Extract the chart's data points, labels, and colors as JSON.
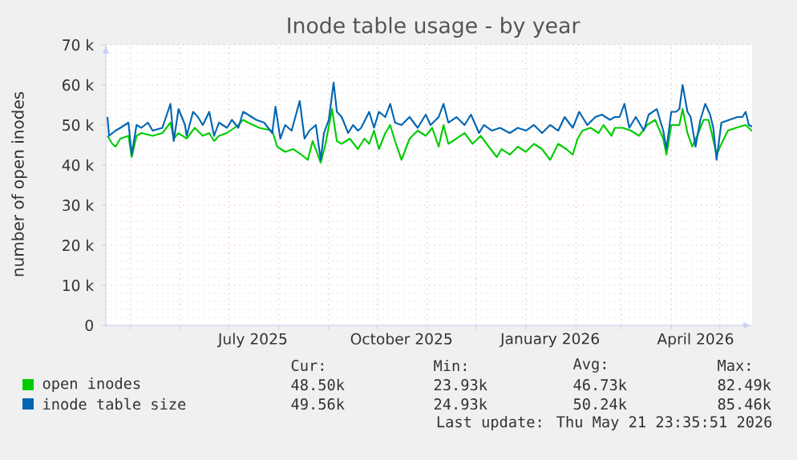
{
  "chart_data": {
    "type": "line",
    "title": "Inode table usage - by year",
    "ylabel": "number of open inodes",
    "xlim": [
      "2025-04-16",
      "2026-05-21"
    ],
    "ylim": [
      0,
      70000
    ],
    "yticks": [
      0,
      {
        "value": 10000,
        "label": "10 k"
      },
      {
        "value": 20000,
        "label": "20 k"
      },
      {
        "value": 30000,
        "label": "30 k"
      },
      {
        "value": 40000,
        "label": "40 k"
      },
      {
        "value": 50000,
        "label": "50 k"
      },
      {
        "value": 60000,
        "label": "60 k"
      },
      {
        "value": 70000,
        "label": "70 k"
      }
    ],
    "xticks": [
      {
        "value": "2025-05-01",
        "label": null
      },
      {
        "value": "2025-06-01",
        "label": null
      },
      {
        "value": "2025-07-01",
        "label": null
      },
      {
        "value": "2025-07-16",
        "label": "July 2025"
      },
      {
        "value": "2025-08-01",
        "label": null
      },
      {
        "value": "2025-09-01",
        "label": null
      },
      {
        "value": "2025-10-01",
        "label": null
      },
      {
        "value": "2025-10-16",
        "label": "October 2025"
      },
      {
        "value": "2025-11-01",
        "label": null
      },
      {
        "value": "2025-12-01",
        "label": null
      },
      {
        "value": "2026-01-01",
        "label": null
      },
      {
        "value": "2026-01-16",
        "label": "January 2026"
      },
      {
        "value": "2026-02-01",
        "label": null
      },
      {
        "value": "2026-03-01",
        "label": null
      },
      {
        "value": "2026-04-01",
        "label": null
      },
      {
        "value": "2026-04-16",
        "label": "April 2026"
      },
      {
        "value": "2026-05-01",
        "label": null
      }
    ],
    "grid": true,
    "legend": "bottom",
    "marker": "none",
    "line_style": "solid",
    "annotations": [
      "Cur:",
      "Min:",
      "Avg:",
      "Max:",
      "48.50k",
      "23.93k",
      "46.73k",
      "82.49k",
      "49.56k",
      "24.93k",
      "50.24k",
      "85.46k",
      "Last update: Thu May 21 23:35:51 2026"
    ],
    "series": [
      {
        "name": "open inodes",
        "color": "#00cc00",
        "x": [
          "2025-04-17",
          "2025-04-20",
          "2025-04-22",
          "2025-04-25",
          "2025-04-30",
          "2025-05-02",
          "2025-05-05",
          "2025-05-08",
          "2025-05-15",
          "2025-05-21",
          "2025-05-26",
          "2025-05-28",
          "2025-05-31",
          "2025-06-05",
          "2025-06-10",
          "2025-06-15",
          "2025-06-19",
          "2025-06-22",
          "2025-06-25",
          "2025-06-30",
          "2025-07-07",
          "2025-07-10",
          "2025-07-13",
          "2025-07-20",
          "2025-07-28",
          "2025-07-31",
          "2025-08-05",
          "2025-08-10",
          "2025-08-15",
          "2025-08-19",
          "2025-08-22",
          "2025-08-27",
          "2025-08-30",
          "2025-09-03",
          "2025-09-06",
          "2025-09-09",
          "2025-09-14",
          "2025-09-19",
          "2025-09-23",
          "2025-09-26",
          "2025-09-29",
          "2025-10-02",
          "2025-10-06",
          "2025-10-09",
          "2025-10-12",
          "2025-10-16",
          "2025-10-21",
          "2025-10-26",
          "2025-10-31",
          "2025-11-04",
          "2025-11-08",
          "2025-11-11",
          "2025-11-14",
          "2025-11-19",
          "2025-11-24",
          "2025-11-29",
          "2025-12-04",
          "2025-12-09",
          "2025-12-14",
          "2025-12-17",
          "2025-12-22",
          "2025-12-27",
          "2026-01-01",
          "2026-01-06",
          "2026-01-11",
          "2026-01-16",
          "2026-01-21",
          "2026-01-26",
          "2026-01-30",
          "2026-02-02",
          "2026-02-05",
          "2026-02-10",
          "2026-02-15",
          "2026-02-18",
          "2026-02-23",
          "2026-02-25",
          "2026-03-02",
          "2026-03-07",
          "2026-03-12",
          "2026-03-17",
          "2026-03-22",
          "2026-03-27",
          "2026-03-29",
          "2026-04-01",
          "2026-04-06",
          "2026-04-08",
          "2026-04-11",
          "2026-04-14",
          "2026-04-17",
          "2026-04-21",
          "2026-04-24",
          "2026-04-26",
          "2026-04-29",
          "2026-05-02",
          "2026-05-06",
          "2026-05-11",
          "2026-05-17",
          "2026-05-21"
        ],
        "values": [
          47300,
          45300,
          44600,
          46600,
          47300,
          42000,
          47300,
          48000,
          47300,
          48000,
          50600,
          46600,
          48000,
          46600,
          49300,
          47300,
          48000,
          46000,
          47300,
          48000,
          50000,
          51300,
          50600,
          49300,
          48600,
          44600,
          43300,
          44000,
          42600,
          41300,
          46000,
          40600,
          45300,
          54000,
          46000,
          45300,
          46600,
          44000,
          46600,
          45300,
          48600,
          44000,
          48000,
          50000,
          46000,
          41300,
          46600,
          48600,
          47300,
          49300,
          44600,
          50000,
          45300,
          46600,
          48000,
          45300,
          47300,
          44600,
          42000,
          44000,
          42600,
          44600,
          43300,
          45300,
          44000,
          41300,
          45300,
          44000,
          42600,
          46600,
          48600,
          49300,
          48000,
          50000,
          47300,
          49300,
          49300,
          48600,
          47300,
          50000,
          51300,
          46600,
          42600,
          50000,
          50000,
          54000,
          48000,
          44600,
          47300,
          51300,
          51300,
          48000,
          42600,
          45300,
          48600,
          49300,
          50000,
          48500
        ]
      },
      {
        "name": "inode table size",
        "color": "#0066b3",
        "x": [
          "2025-04-17",
          "2025-04-18",
          "2025-04-22",
          "2025-04-25",
          "2025-04-30",
          "2025-05-02",
          "2025-05-05",
          "2025-05-08",
          "2025-05-12",
          "2025-05-15",
          "2025-05-21",
          "2025-05-26",
          "2025-05-28",
          "2025-05-31",
          "2025-06-04",
          "2025-06-05",
          "2025-06-09",
          "2025-06-12",
          "2025-06-15",
          "2025-06-19",
          "2025-06-22",
          "2025-06-25",
          "2025-06-30",
          "2025-07-03",
          "2025-07-07",
          "2025-07-10",
          "2025-07-13",
          "2025-07-18",
          "2025-07-23",
          "2025-07-28",
          "2025-07-30",
          "2025-08-02",
          "2025-08-05",
          "2025-08-09",
          "2025-08-14",
          "2025-08-17",
          "2025-08-20",
          "2025-08-24",
          "2025-08-27",
          "2025-08-29",
          "2025-09-01",
          "2025-09-04",
          "2025-09-06",
          "2025-09-09",
          "2025-09-13",
          "2025-09-16",
          "2025-09-19",
          "2025-09-21",
          "2025-09-26",
          "2025-09-29",
          "2025-10-02",
          "2025-10-06",
          "2025-10-09",
          "2025-10-12",
          "2025-10-16",
          "2025-10-21",
          "2025-10-26",
          "2025-10-31",
          "2025-11-03",
          "2025-11-08",
          "2025-11-11",
          "2025-11-14",
          "2025-11-19",
          "2025-11-24",
          "2025-11-28",
          "2025-12-03",
          "2025-12-06",
          "2025-12-11",
          "2025-12-16",
          "2025-12-22",
          "2025-12-27",
          "2026-01-01",
          "2026-01-06",
          "2026-01-11",
          "2026-01-16",
          "2026-01-21",
          "2026-01-25",
          "2026-01-30",
          "2026-02-03",
          "2026-02-08",
          "2026-02-13",
          "2026-02-17",
          "2026-02-22",
          "2026-02-25",
          "2026-02-28",
          "2026-03-03",
          "2026-03-06",
          "2026-03-10",
          "2026-03-15",
          "2026-03-18",
          "2026-03-23",
          "2026-03-27",
          "2026-03-29",
          "2026-04-01",
          "2026-04-04",
          "2026-04-06",
          "2026-04-08",
          "2026-04-11",
          "2026-04-13",
          "2026-04-16",
          "2026-04-19",
          "2026-04-22",
          "2026-04-25",
          "2026-04-27",
          "2026-04-29",
          "2026-05-02",
          "2026-05-07",
          "2026-05-12",
          "2026-05-15",
          "2026-05-17",
          "2026-05-19",
          "2026-05-21"
        ],
        "values": [
          52000,
          47300,
          48600,
          49300,
          50600,
          42600,
          50000,
          49300,
          50600,
          48600,
          49300,
          55300,
          46000,
          54000,
          50000,
          47300,
          53300,
          52000,
          50000,
          53300,
          47300,
          50600,
          49300,
          51300,
          49300,
          53300,
          52600,
          51300,
          50600,
          48000,
          54600,
          46600,
          50000,
          48600,
          56000,
          46600,
          48600,
          50000,
          41300,
          48000,
          51300,
          60600,
          53300,
          52000,
          48000,
          50000,
          48600,
          49300,
          53300,
          49300,
          53300,
          52000,
          55300,
          50600,
          50000,
          52000,
          49300,
          52600,
          50000,
          52000,
          55300,
          50600,
          52000,
          50000,
          52600,
          48000,
          50000,
          48600,
          49300,
          48000,
          49300,
          48600,
          50000,
          48000,
          50000,
          48600,
          52000,
          49300,
          53300,
          50000,
          52000,
          52600,
          51300,
          52000,
          52000,
          55300,
          49300,
          52000,
          48600,
          52600,
          54000,
          48600,
          44000,
          53300,
          53300,
          54000,
          60000,
          53300,
          52000,
          44600,
          51300,
          55300,
          52600,
          49300,
          41300,
          50600,
          51300,
          52000,
          52000,
          53300,
          50000,
          49600
        ]
      }
    ]
  }
}
